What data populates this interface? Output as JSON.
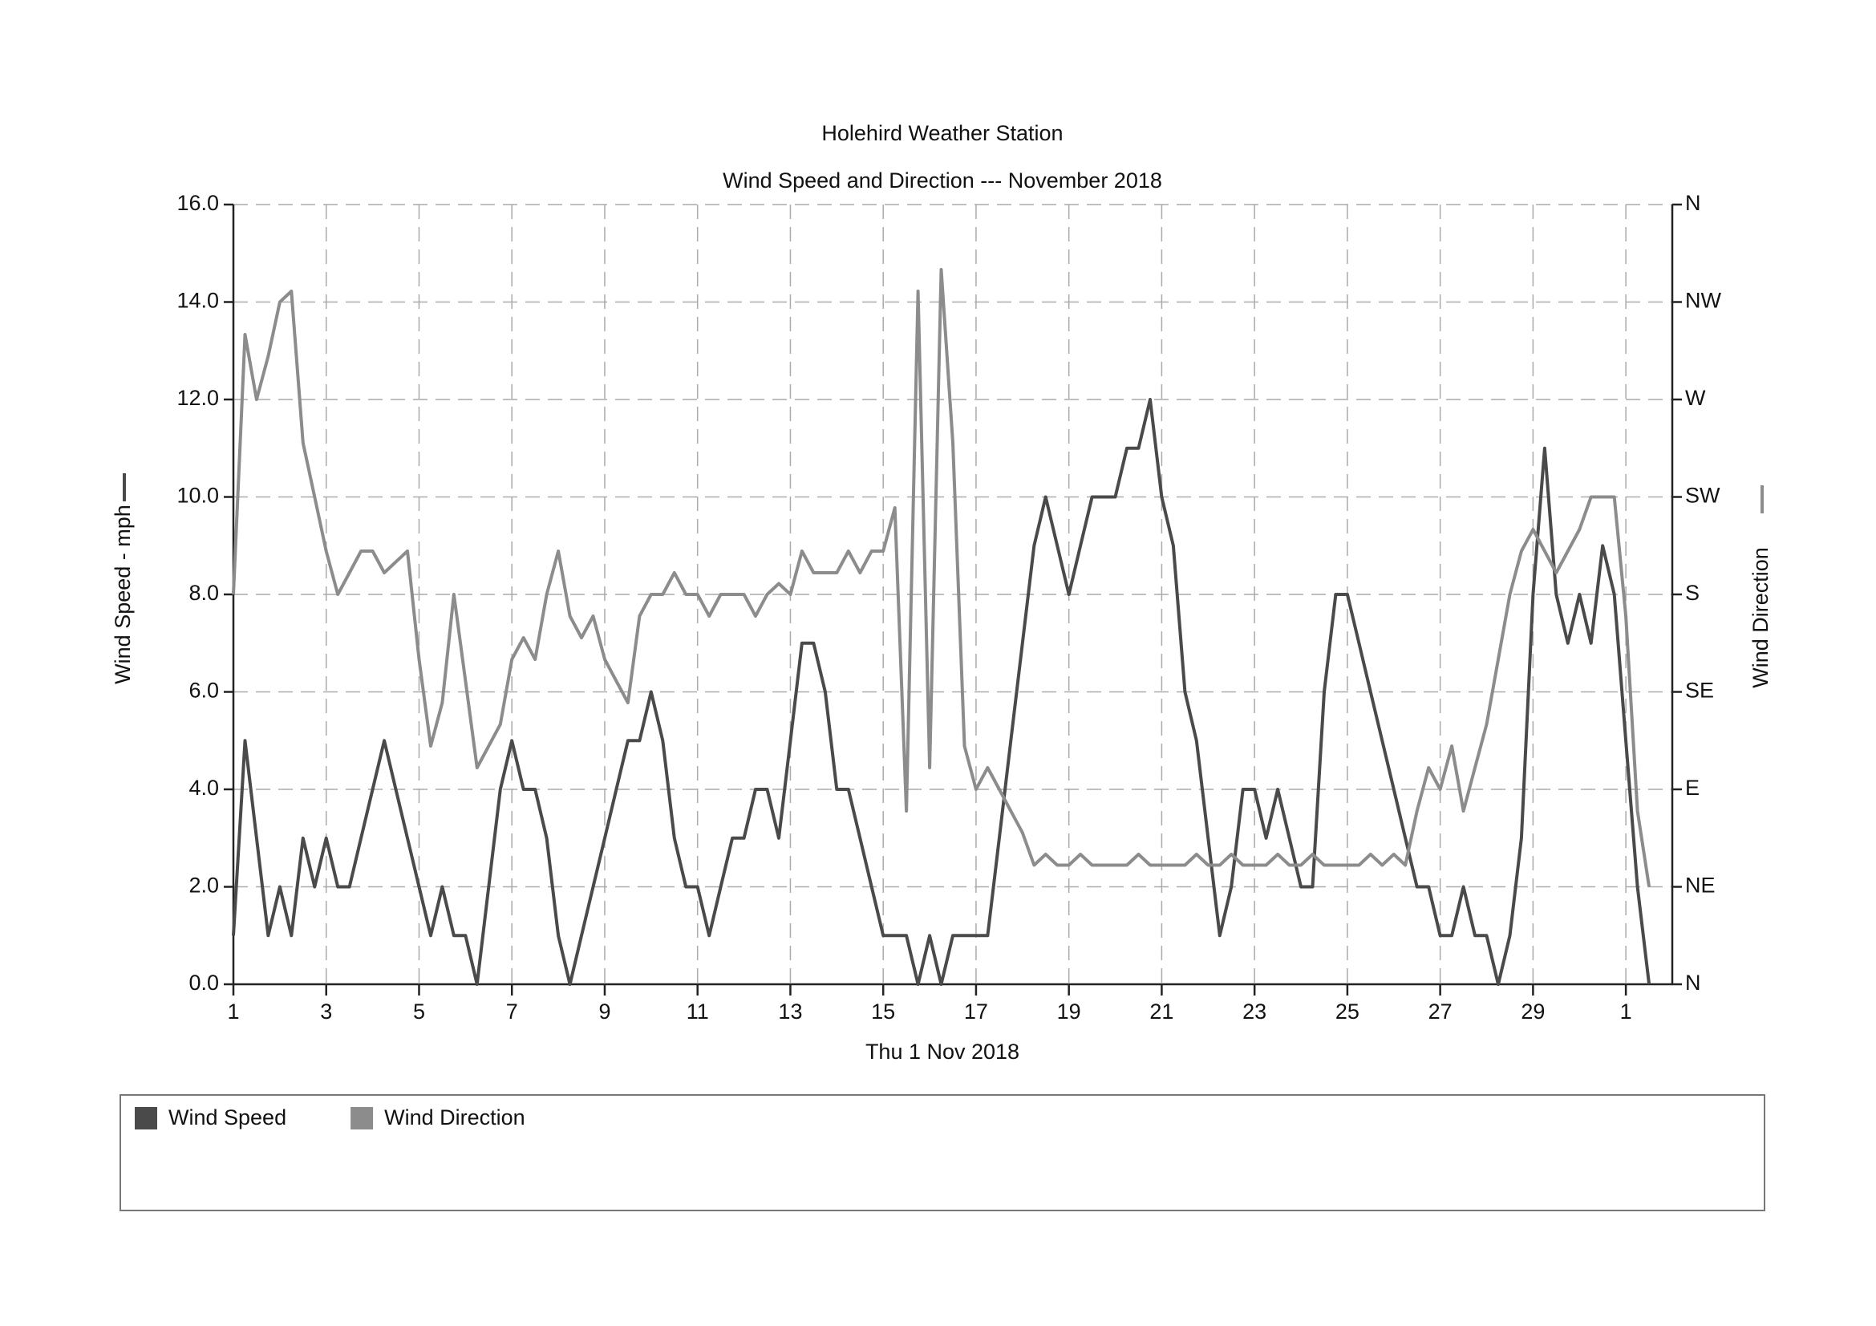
{
  "chart_data": {
    "type": "line",
    "title": "Holehird Weather Station",
    "subtitle": "Wind Speed and Direction --- November 2018",
    "xlabel": "Thu 1 Nov 2018",
    "ylabel": "Wind Speed - mph",
    "y2label": "Wind Direction",
    "x": [
      1,
      1.25,
      1.5,
      1.75,
      2,
      2.25,
      2.5,
      2.75,
      3,
      3.25,
      3.5,
      3.75,
      4,
      4.25,
      4.5,
      4.75,
      5,
      5.25,
      5.5,
      5.75,
      6,
      6.25,
      6.5,
      6.75,
      7,
      7.25,
      7.5,
      7.75,
      8,
      8.25,
      8.5,
      8.75,
      9,
      9.25,
      9.5,
      9.75,
      10,
      10.25,
      10.5,
      10.75,
      11,
      11.25,
      11.5,
      11.75,
      12,
      12.25,
      12.5,
      12.75,
      13,
      13.25,
      13.5,
      13.75,
      14,
      14.25,
      14.5,
      14.75,
      15,
      15.25,
      15.5,
      15.75,
      16,
      16.25,
      16.5,
      16.75,
      17,
      17.25,
      17.5,
      17.75,
      18,
      18.25,
      18.5,
      18.75,
      19,
      19.25,
      19.5,
      19.75,
      20,
      20.25,
      20.5,
      20.75,
      21,
      21.25,
      21.5,
      21.75,
      22,
      22.25,
      22.5,
      22.75,
      23,
      23.25,
      23.5,
      23.75,
      24,
      24.25,
      24.5,
      24.75,
      25,
      25.25,
      25.5,
      25.75,
      26,
      26.25,
      26.5,
      26.75,
      27,
      27.25,
      27.5,
      27.75,
      28,
      28.25,
      28.5,
      28.75,
      29,
      29.25,
      29.5,
      29.75,
      30,
      30.25,
      30.5,
      30.75,
      31,
      31.25,
      31.5
    ],
    "series": [
      {
        "name": "Wind Speed",
        "color": "#4a4a4a",
        "values": [
          1,
          5,
          3,
          1,
          2,
          1,
          3,
          2,
          3,
          2,
          2,
          3,
          4,
          5,
          4,
          3,
          2,
          1,
          2,
          1,
          1,
          0,
          2,
          4,
          5,
          4,
          4,
          3,
          1,
          0,
          1,
          2,
          3,
          4,
          5,
          5,
          6,
          5,
          3,
          2,
          2,
          1,
          2,
          3,
          3,
          4,
          4,
          3,
          5,
          7,
          7,
          6,
          4,
          4,
          3,
          2,
          1,
          1,
          1,
          0,
          1,
          0,
          1,
          1,
          1,
          1,
          3,
          5,
          7,
          9,
          10,
          9,
          8,
          9,
          10,
          10,
          10,
          11,
          11,
          12,
          10,
          9,
          6,
          5,
          3,
          1,
          2,
          4,
          4,
          3,
          4,
          3,
          2,
          2,
          6,
          8,
          8,
          7,
          6,
          5,
          4,
          3,
          2,
          2,
          1,
          1,
          2,
          1,
          1,
          0,
          1,
          3,
          8,
          11,
          8,
          7,
          8,
          7,
          9,
          8,
          5,
          2,
          0
        ]
      },
      {
        "name": "Wind Direction",
        "color": "#8c8c8c",
        "axis": "y2",
        "values": [
          180,
          300,
          270,
          290,
          315,
          320,
          250,
          225,
          200,
          180,
          190,
          200,
          200,
          190,
          195,
          200,
          150,
          110,
          130,
          180,
          140,
          100,
          110,
          120,
          150,
          160,
          150,
          180,
          200,
          170,
          160,
          170,
          150,
          140,
          130,
          170,
          180,
          180,
          190,
          180,
          180,
          170,
          180,
          180,
          180,
          170,
          180,
          185,
          180,
          200,
          190,
          190,
          190,
          200,
          190,
          200,
          200,
          220,
          80,
          320,
          100,
          330,
          250,
          110,
          90,
          100,
          90,
          80,
          70,
          55,
          60,
          55,
          55,
          60,
          55,
          55,
          55,
          55,
          60,
          55,
          55,
          55,
          55,
          60,
          55,
          55,
          60,
          55,
          55,
          55,
          60,
          55,
          55,
          60,
          55,
          55,
          55,
          55,
          60,
          55,
          60,
          55,
          80,
          100,
          90,
          110,
          80,
          100,
          120,
          150,
          180,
          200,
          210,
          200,
          190,
          200,
          210,
          225,
          225,
          225,
          170,
          80,
          45
        ]
      }
    ],
    "xlim": [
      1,
      32
    ],
    "xticks": [
      1,
      3,
      5,
      7,
      9,
      11,
      13,
      15,
      17,
      19,
      21,
      23,
      25,
      27,
      29,
      {
        "value": 31,
        "label": "1"
      }
    ],
    "ylim": [
      0,
      16
    ],
    "yticks": [
      {
        "value": 0,
        "label": "0.0"
      },
      {
        "value": 2,
        "label": "2.0"
      },
      {
        "value": 4,
        "label": "4.0"
      },
      {
        "value": 6,
        "label": "6.0"
      },
      {
        "value": 8,
        "label": "8.0"
      },
      {
        "value": 10,
        "label": "10.0"
      },
      {
        "value": 12,
        "label": "12.0"
      },
      {
        "value": 14,
        "label": "14.0"
      },
      {
        "value": 16,
        "label": "16.0"
      }
    ],
    "y2lim": [
      0,
      360
    ],
    "y2ticks": [
      {
        "value": 0,
        "label": "N"
      },
      {
        "value": 45,
        "label": "NE"
      },
      {
        "value": 90,
        "label": "E"
      },
      {
        "value": 135,
        "label": "SE"
      },
      {
        "value": 180,
        "label": "S"
      },
      {
        "value": 225,
        "label": "SW"
      },
      {
        "value": 270,
        "label": "W"
      },
      {
        "value": 315,
        "label": "NW"
      },
      {
        "value": 360,
        "label": "N"
      }
    ],
    "grid": true
  }
}
